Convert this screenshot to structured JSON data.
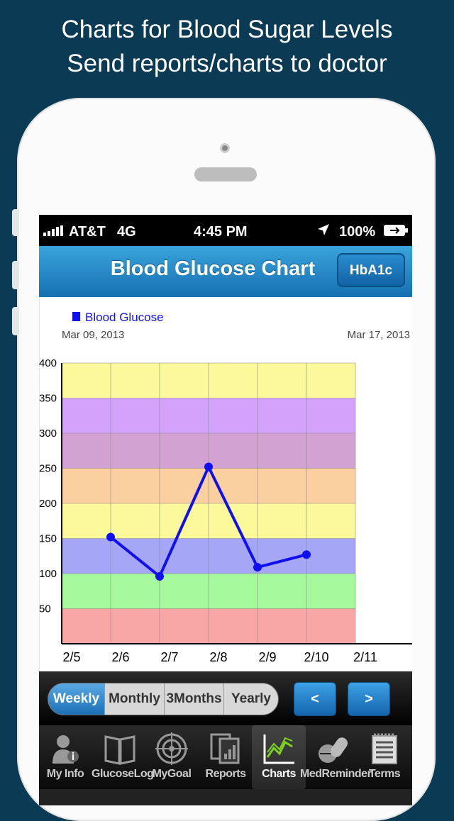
{
  "promo": {
    "line1": "Charts for Blood Sugar Levels",
    "line2": "Send reports/charts to doctor"
  },
  "status_bar": {
    "carrier": "AT&T",
    "network": "4G",
    "time": "4:45 PM",
    "battery": "100%"
  },
  "nav": {
    "title": "Blood Glucose Chart",
    "right_button": "HbA1c"
  },
  "chart_data": {
    "type": "line",
    "legend": "Blood Glucose",
    "date_start": "Mar 09, 2013",
    "date_end": "Mar 17, 2013",
    "x_ticks": [
      "2/5",
      "2/6",
      "2/7",
      "2/8",
      "2/9",
      "2/10",
      "2/11"
    ],
    "y_ticks": [
      50,
      100,
      150,
      200,
      250,
      300,
      350,
      400
    ],
    "ylim": [
      0,
      400
    ],
    "series": [
      {
        "name": "Blood Glucose",
        "color": "#1010ee",
        "points": [
          {
            "x": "2/6",
            "y": 152
          },
          {
            "x": "2/7",
            "y": 96
          },
          {
            "x": "2/8",
            "y": 252
          },
          {
            "x": "2/9",
            "y": 109
          },
          {
            "x": "2/10",
            "y": 127
          }
        ]
      }
    ],
    "bands": [
      {
        "from": 0,
        "to": 50,
        "color": "#f9a6a6"
      },
      {
        "from": 50,
        "to": 100,
        "color": "#a6f99a"
      },
      {
        "from": 100,
        "to": 150,
        "color": "#a6a6f7"
      },
      {
        "from": 150,
        "to": 200,
        "color": "#fbf99a"
      },
      {
        "from": 200,
        "to": 250,
        "color": "#fbd0a0"
      },
      {
        "from": 250,
        "to": 300,
        "color": "#d2a3d2"
      },
      {
        "from": 300,
        "to": 350,
        "color": "#d3a2fb"
      },
      {
        "from": 350,
        "to": 400,
        "color": "#fbf99a"
      }
    ]
  },
  "period_tabs": {
    "weekly": "Weekly",
    "monthly": "Monthly",
    "three_months": "3Months",
    "yearly": "Yearly",
    "selected": "Weekly"
  },
  "pager": {
    "prev": "<",
    "next": ">"
  },
  "tabbar": {
    "my_info": "My Info",
    "glucose_log": "GlucoseLog",
    "my_goal": "MyGoal",
    "reports": "Reports",
    "charts": "Charts",
    "med_reminder": "MedReminder",
    "terms": "Terms",
    "active": "Charts"
  }
}
